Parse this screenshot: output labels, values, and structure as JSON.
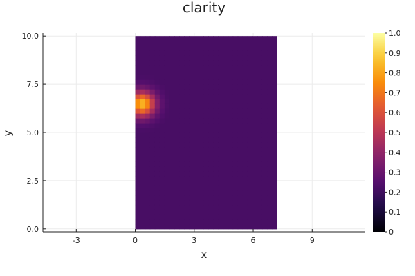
{
  "chart_data": {
    "type": "heatmap",
    "title": "clarity",
    "xlabel": "x",
    "ylabel": "y",
    "xlim": [
      -4.7,
      11.7
    ],
    "ylim": [
      -0.15,
      10.15
    ],
    "x_ticks": [
      -3,
      0,
      3,
      6,
      9
    ],
    "y_ticks": [
      0.0,
      2.5,
      5.0,
      7.5,
      10.0
    ],
    "x_tick_labels": [
      "-3",
      "0",
      "3",
      "6",
      "9"
    ],
    "y_tick_labels": [
      "0.0",
      "2.5",
      "5.0",
      "7.5",
      "10.0"
    ],
    "grid": true,
    "colormap": "inferno",
    "colorbar": {
      "range": [
        0,
        1
      ],
      "ticks": [
        0,
        0.1,
        0.2,
        0.3,
        0.4,
        0.5,
        0.6,
        0.7,
        0.8,
        0.9,
        1.0
      ],
      "tick_labels": [
        "0",
        "0.1",
        "0.2",
        "0.3",
        "0.4",
        "0.5",
        "0.6",
        "0.7",
        "0.8",
        "0.9",
        "1.0"
      ]
    },
    "grid_x_range": [
      0,
      7.2
    ],
    "grid_y_range": [
      0,
      10
    ],
    "nx": 29,
    "ny": 40,
    "background_value": 0.22,
    "peak": {
      "x": 0.35,
      "y": 6.5,
      "value": 0.85,
      "spread": 0.45
    }
  }
}
